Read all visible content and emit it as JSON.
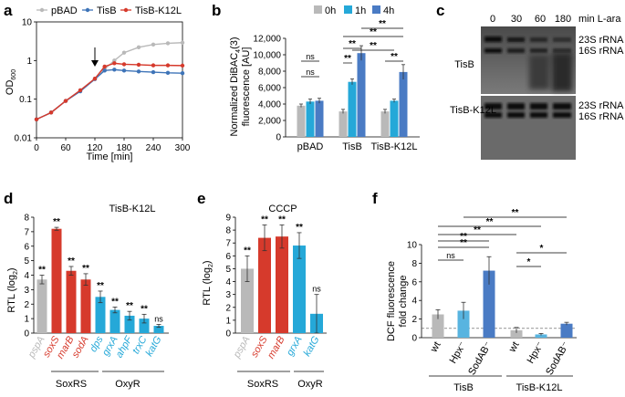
{
  "panels": {
    "a": {
      "letter": "a",
      "legend": [
        "pBAD",
        "TisB",
        "TisB-K12L"
      ],
      "ylabel": "OD",
      "ylabel_sub": "600",
      "xlabel": "Time [min]",
      "yticks": [
        "10",
        "1",
        "0.1",
        "0.01"
      ],
      "xticks": [
        "0",
        "60",
        "120",
        "180",
        "240",
        "300"
      ]
    },
    "b": {
      "letter": "b",
      "legend": [
        "0h",
        "1h",
        "4h"
      ],
      "ylabel1": "Normalized DiBAC",
      "ylabel1_sub": "4",
      "ylabel1_tail": "(3)",
      "ylabel2": "fluorescence [AU]",
      "yticks": [
        "12,000",
        "10,000",
        "8,000",
        "6,000",
        "4,000",
        "2,000",
        "0"
      ],
      "groups": [
        "pBAD",
        "TisB",
        "TisB-K12L"
      ],
      "sig": [
        "ns",
        "ns",
        "**",
        "**",
        "**",
        "**",
        "**",
        "**"
      ]
    },
    "c": {
      "letter": "c",
      "times": [
        "0",
        "30",
        "60",
        "180"
      ],
      "time_unit": "min L-ara",
      "strain_top": "TisB",
      "strain_bottom": "TisB-K12L",
      "band1": "23S rRNA",
      "band2": "16S rRNA"
    },
    "d": {
      "letter": "d",
      "title": "TisB-K12L",
      "ylabel": "RTL (log",
      "ylabel_sub": "2",
      "ylabel_tail": ")",
      "yticks": [
        "8",
        "7",
        "6",
        "5",
        "4",
        "3",
        "2",
        "1",
        "0"
      ],
      "genes": [
        "pspA",
        "soxS",
        "marB",
        "sodA",
        "dps",
        "grxA",
        "ahpF",
        "trxC",
        "katG"
      ],
      "sig": [
        "**",
        "**",
        "**",
        "**",
        "**",
        "**",
        "**",
        "**",
        "ns"
      ],
      "group1": "SoxRS",
      "group2": "OxyR"
    },
    "e": {
      "letter": "e",
      "title": "CCCP",
      "ylabel": "RTL (log",
      "ylabel_sub": "2",
      "ylabel_tail": ")",
      "yticks": [
        "9",
        "8",
        "7",
        "6",
        "5",
        "4",
        "3",
        "2",
        "1",
        "0"
      ],
      "genes": [
        "pspA",
        "soxS",
        "marB",
        "grxA",
        "katG"
      ],
      "sig": [
        "**",
        "**",
        "**",
        "**",
        "ns"
      ],
      "group1": "SoxRS",
      "group2": "OxyR"
    },
    "f": {
      "letter": "f",
      "ylabel1": "DCF fluorescence",
      "ylabel2": "fold change",
      "yticks": [
        "10",
        "8",
        "6",
        "4",
        "2",
        "0"
      ],
      "cats": [
        "wt",
        "Hpx⁻",
        "SodAB⁻",
        "wt",
        "Hpx⁻",
        "SodAB⁻"
      ],
      "group1": "TisB",
      "group2": "TisB-K12L",
      "sig": [
        "**",
        "ns",
        "**",
        "**",
        "**",
        "**",
        "*",
        "*"
      ]
    }
  },
  "colors": {
    "grey": "#b9b9b9",
    "blue": "#3e74b8",
    "red": "#d63a2c",
    "cyan": "#25a8d8",
    "midblue": "#4a7bc4",
    "lightblue": "#58b4e0",
    "gel": "#5a5a5a"
  },
  "chart_data": [
    {
      "panel": "a",
      "type": "line",
      "title": "",
      "xlabel": "Time [min]",
      "ylabel": "OD600",
      "yscale": "log",
      "xlim": [
        0,
        300
      ],
      "ylim": [
        0.01,
        10
      ],
      "annotation": "arrow at 120 min",
      "series": [
        {
          "name": "pBAD",
          "x": [
            0,
            30,
            60,
            90,
            120,
            140,
            160,
            180,
            210,
            240,
            270,
            300
          ],
          "y": [
            0.03,
            0.045,
            0.09,
            0.17,
            0.34,
            0.6,
            1.0,
            1.6,
            2.2,
            2.6,
            2.8,
            2.9
          ]
        },
        {
          "name": "TisB",
          "x": [
            0,
            30,
            60,
            90,
            120,
            140,
            160,
            180,
            210,
            240,
            270,
            300
          ],
          "y": [
            0.03,
            0.045,
            0.09,
            0.16,
            0.33,
            0.55,
            0.58,
            0.55,
            0.52,
            0.5,
            0.48,
            0.47
          ]
        },
        {
          "name": "TisB-K12L",
          "x": [
            0,
            30,
            60,
            90,
            120,
            140,
            160,
            180,
            210,
            240,
            270,
            300
          ],
          "y": [
            0.03,
            0.045,
            0.09,
            0.17,
            0.34,
            0.7,
            0.85,
            0.8,
            0.78,
            0.75,
            0.75,
            0.74
          ]
        }
      ]
    },
    {
      "panel": "b",
      "type": "bar",
      "ylabel": "Normalized DiBAC4(3) fluorescence [AU]",
      "ylim": [
        0,
        12000
      ],
      "categories": [
        "pBAD",
        "TisB",
        "TisB-K12L"
      ],
      "series": [
        {
          "name": "0h",
          "values": [
            3800,
            3100,
            3100
          ],
          "errors": [
            200,
            250,
            250
          ]
        },
        {
          "name": "1h",
          "values": [
            4300,
            6700,
            4400
          ],
          "errors": [
            300,
            350,
            200
          ]
        },
        {
          "name": "4h",
          "values": [
            4400,
            10200,
            7900
          ],
          "errors": [
            300,
            900,
            900
          ]
        }
      ]
    },
    {
      "panel": "d",
      "type": "bar",
      "title": "TisB-K12L",
      "ylabel": "RTL (log2)",
      "ylim": [
        0,
        8
      ],
      "categories": [
        "pspA",
        "soxS",
        "marB",
        "sodA",
        "dps",
        "grxA",
        "ahpF",
        "trxC",
        "katG"
      ],
      "values": [
        3.7,
        7.2,
        4.3,
        3.7,
        2.5,
        1.6,
        1.2,
        1.0,
        0.5
      ],
      "errors": [
        0.3,
        0.1,
        0.3,
        0.4,
        0.4,
        0.2,
        0.3,
        0.3,
        0.1
      ]
    },
    {
      "panel": "e",
      "type": "bar",
      "title": "CCCP",
      "ylabel": "RTL (log2)",
      "ylim": [
        0,
        9
      ],
      "categories": [
        "pspA",
        "soxS",
        "marB",
        "grxA",
        "katG"
      ],
      "values": [
        5.0,
        7.4,
        7.5,
        6.8,
        1.5
      ],
      "errors": [
        1.0,
        1.0,
        0.9,
        1.0,
        1.5
      ]
    },
    {
      "panel": "f",
      "type": "bar",
      "ylabel": "DCF fluorescence fold change",
      "ylim": [
        0,
        10
      ],
      "categories": [
        "wt",
        "Hpx-",
        "SodAB-",
        "wt",
        "Hpx-",
        "SodAB-"
      ],
      "groups": [
        "TisB",
        "TisB",
        "TisB",
        "TisB-K12L",
        "TisB-K12L",
        "TisB-K12L"
      ],
      "values": [
        2.5,
        2.9,
        7.2,
        0.8,
        0.35,
        1.5
      ],
      "errors": [
        0.5,
        0.9,
        1.5,
        0.3,
        0.1,
        0.15
      ],
      "reference_line": 1
    }
  ]
}
